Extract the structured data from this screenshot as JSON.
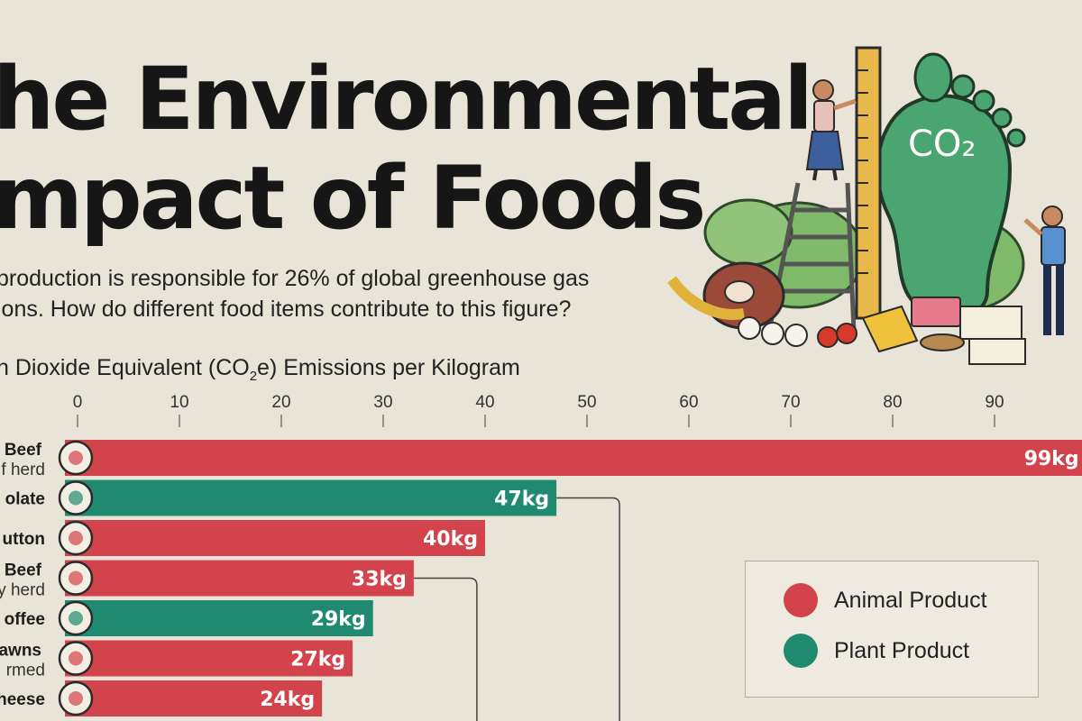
{
  "title": {
    "line1": "he Environmental",
    "line2": "mpact of Foods"
  },
  "subtitle": "production is responsible for 26% of global greenhouse gas\nions. How do different food items contribute to this figure?",
  "axis_title": {
    "pre": "n Dioxide Equivalent (CO",
    "sub": "2",
    "post": "e) Emissions per Kilogram"
  },
  "illustration": {
    "badge_text": "CO₂",
    "icon": "carbon-footprint-illustration"
  },
  "legend": {
    "animal": {
      "label": "Animal Product",
      "color": "#d3434c"
    },
    "plant": {
      "label": "Plant Product",
      "color": "#1f8a70"
    }
  },
  "colors": {
    "animal": "#d3434c",
    "plant": "#1f8a70",
    "connector": "#444444"
  },
  "chart_data": {
    "type": "bar",
    "orientation": "horizontal",
    "x_ticks": [
      "0",
      "10",
      "20",
      "30",
      "40",
      "50",
      "60",
      "70",
      "80",
      "90"
    ],
    "xlim": [
      0,
      99
    ],
    "grid": false,
    "legend_position": "right",
    "categories": [
      {
        "label": "Beef",
        "sublabel": "f herd",
        "value": 99,
        "value_label": "99kg",
        "type": "animal",
        "icon": "steak-icon"
      },
      {
        "label": "olate",
        "sublabel": "",
        "value": 47,
        "value_label": "47kg",
        "type": "plant",
        "icon": "chocolate-icon"
      },
      {
        "label": "utton",
        "sublabel": "",
        "value": 40,
        "value_label": "40kg",
        "type": "animal",
        "icon": "drumstick-icon"
      },
      {
        "label": "Beef",
        "sublabel": "y herd",
        "value": 33,
        "value_label": "33kg",
        "type": "animal",
        "icon": "steak-icon"
      },
      {
        "label": "offee",
        "sublabel": "",
        "value": 29,
        "value_label": "29kg",
        "type": "plant",
        "icon": "coffee-cup-icon"
      },
      {
        "label": "awns",
        "sublabel": "rmed",
        "value": 27,
        "value_label": "27kg",
        "type": "animal",
        "icon": "prawn-icon"
      },
      {
        "label": "heese",
        "sublabel": "",
        "value": 24,
        "value_label": "24kg",
        "type": "animal",
        "icon": "cheese-icon"
      }
    ]
  }
}
